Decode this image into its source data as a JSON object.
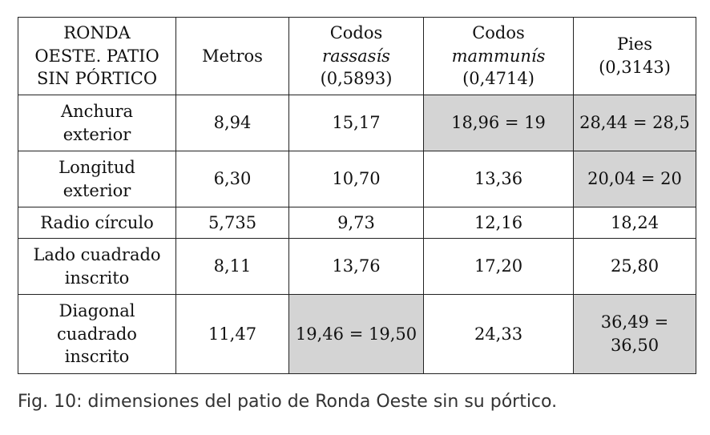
{
  "table": {
    "header": {
      "col0": [
        "RONDA",
        "OESTE. PATIO",
        "SIN PÓRTICO"
      ],
      "col1": "Metros",
      "col2": {
        "line1": "Codos",
        "line2": "rassasís",
        "line3": "(0,5893)"
      },
      "col3": {
        "line1": "Codos",
        "line2": "mammunís",
        "line3": "(0,4714)"
      },
      "col4": {
        "line1": "Pies",
        "line2": "(0,3143)"
      }
    },
    "rows": [
      {
        "label": [
          "Anchura",
          "exterior"
        ],
        "values": [
          "8,94",
          "15,17",
          "18,96 = 19",
          "28,44 = 28,5"
        ],
        "shaded": [
          false,
          false,
          true,
          true
        ]
      },
      {
        "label": [
          "Longitud",
          "exterior"
        ],
        "values": [
          "6,30",
          "10,70",
          "13,36",
          "20,04 = 20"
        ],
        "shaded": [
          false,
          false,
          false,
          true
        ]
      },
      {
        "label": [
          "Radio círculo"
        ],
        "values": [
          "5,735",
          "9,73",
          "12,16",
          "18,24"
        ],
        "shaded": [
          false,
          false,
          false,
          false
        ]
      },
      {
        "label": [
          "Lado cuadrado",
          "inscrito"
        ],
        "values": [
          "8,11",
          "13,76",
          "17,20",
          "25,80"
        ],
        "shaded": [
          false,
          false,
          false,
          false
        ]
      },
      {
        "label": [
          "Diagonal",
          "cuadrado",
          "inscrito"
        ],
        "values": [
          "11,47",
          "19,46 = 19,50",
          "24,33",
          "36,49 =|36,50"
        ],
        "shaded": [
          false,
          true,
          false,
          true
        ]
      }
    ],
    "shade_color": "#d4d4d4"
  },
  "caption": "Fig. 10: dimensiones del patio de Ronda Oeste sin su pórtico."
}
